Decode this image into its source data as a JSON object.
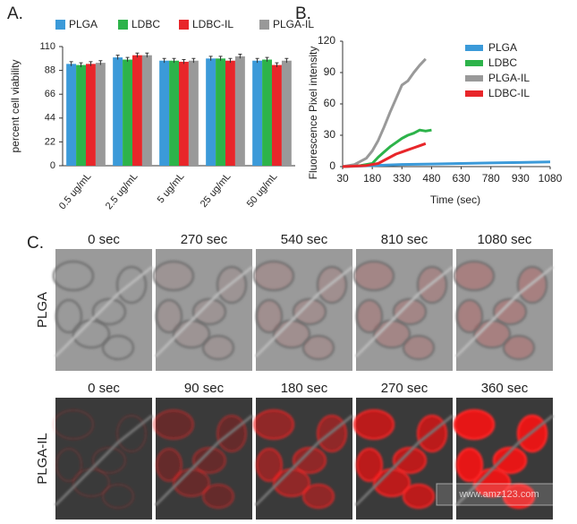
{
  "chart_data": [
    {
      "type": "bar",
      "panel": "A.",
      "ylabel": "percent cell viability",
      "categories": [
        "0.5 ug/mL",
        "2.5 ug/mL",
        "5 ug/mL",
        "25 ug/mL",
        "50 ug/mL"
      ],
      "series": [
        {
          "name": "PLGA",
          "color": "#3b9ad9",
          "values": [
            94,
            100,
            97,
            99,
            97
          ],
          "errors": [
            2,
            2,
            2,
            2,
            2
          ]
        },
        {
          "name": "LDBC",
          "color": "#2db34a",
          "values": [
            93,
            98,
            97,
            99,
            98
          ],
          "errors": [
            2,
            2,
            2,
            2,
            2
          ]
        },
        {
          "name": "LDBC-IL",
          "color": "#e8262a",
          "values": [
            94,
            102,
            96,
            97,
            93
          ],
          "errors": [
            2,
            2,
            2,
            2,
            2
          ]
        },
        {
          "name": "PLGA-IL",
          "color": "#999999",
          "values": [
            95,
            102,
            97,
            101,
            97
          ],
          "errors": [
            2,
            2,
            2,
            2,
            2
          ]
        }
      ],
      "ylim": [
        0,
        110
      ],
      "yticks": [
        0,
        22,
        44,
        66,
        88,
        110
      ],
      "legend": "top"
    },
    {
      "type": "line",
      "panel": "B.",
      "xlabel": "Time (sec)",
      "ylabel": "Fluorescence Pixel intensity",
      "series": [
        {
          "name": "PLGA",
          "color": "#3b9ad9",
          "x": [
            30,
            180,
            330,
            480,
            630,
            780,
            930,
            1080
          ],
          "values": [
            0,
            1,
            2,
            2.5,
            3,
            3.5,
            4,
            4.5
          ]
        },
        {
          "name": "LDBC",
          "color": "#2db34a",
          "x": [
            30,
            120,
            180,
            210,
            240,
            270,
            300,
            330,
            360,
            390,
            420,
            450,
            480
          ],
          "values": [
            0,
            1,
            3,
            9,
            14,
            19,
            23,
            27,
            30,
            32,
            35,
            34,
            35
          ]
        },
        {
          "name": "PLGA-IL",
          "color": "#999999",
          "x": [
            30,
            90,
            150,
            180,
            210,
            240,
            270,
            300,
            330,
            360,
            390,
            420,
            450
          ],
          "values": [
            0,
            2,
            8,
            15,
            25,
            38,
            52,
            65,
            78,
            82,
            90,
            97,
            103
          ]
        },
        {
          "name": "LDBC-IL",
          "color": "#e8262a",
          "x": [
            30,
            150,
            210,
            240,
            270,
            300,
            330,
            360,
            390,
            420,
            450
          ],
          "values": [
            0,
            1,
            3,
            6,
            9,
            12,
            14,
            16,
            18,
            20,
            22
          ]
        }
      ],
      "xlim": [
        30,
        1080
      ],
      "xticks": [
        30,
        180,
        330,
        480,
        630,
        780,
        930,
        1080
      ],
      "ylim": [
        0,
        120
      ],
      "yticks": [
        0,
        30,
        60,
        90,
        120
      ],
      "legend": "upper right"
    }
  ],
  "panel_c": {
    "panel": "C.",
    "rows": [
      {
        "label": "PLGA",
        "times": [
          "0 sec",
          "270 sec",
          "540 sec",
          "810 sec",
          "1080 sec"
        ]
      },
      {
        "label": "PLGA-IL",
        "times": [
          "0 sec",
          "90 sec",
          "180 sec",
          "270 sec",
          "360 sec"
        ]
      }
    ],
    "watermark": "www.amz123.com"
  }
}
